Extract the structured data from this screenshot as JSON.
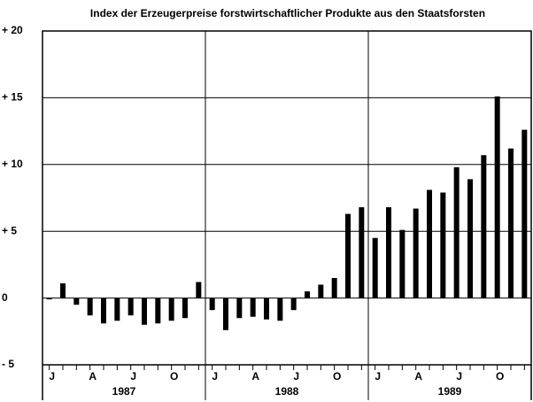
{
  "chart_data": {
    "type": "bar",
    "title": "Index der Erzeugerpreise forstwirtschaftlicher Produkte aus den Staatsforsten",
    "categories": [
      "J",
      null,
      null,
      "A",
      null,
      null,
      "J",
      null,
      null,
      "O",
      null,
      null,
      "J",
      null,
      null,
      "A",
      null,
      null,
      "J",
      null,
      null,
      "O",
      null,
      null,
      "J",
      null,
      null,
      "A",
      null,
      null,
      "J",
      null,
      null,
      "O",
      null,
      null
    ],
    "years": [
      "1987",
      "1988",
      "1989"
    ],
    "values": [
      -0.1,
      1.1,
      -0.5,
      -1.3,
      -1.9,
      -1.7,
      -1.3,
      -2.0,
      -1.9,
      -1.7,
      -1.5,
      1.2,
      -0.9,
      -2.4,
      -1.5,
      -1.4,
      -1.6,
      -1.7,
      -0.9,
      0.5,
      1.0,
      1.5,
      6.3,
      6.8,
      4.5,
      6.8,
      5.1,
      6.7,
      8.1,
      7.9,
      9.8,
      8.9,
      10.7,
      15.1,
      11.2,
      12.6
    ],
    "color": "#000000",
    "ylim": [
      -5,
      20
    ],
    "yticks": [
      {
        "value": -5,
        "label": "- 5"
      },
      0,
      {
        "value": 5,
        "label": "+ 5"
      },
      {
        "value": 10,
        "label": "+ 10"
      },
      {
        "value": 15,
        "label": "+ 15"
      },
      {
        "value": 20,
        "label": "+ 20"
      }
    ],
    "grid": true
  }
}
